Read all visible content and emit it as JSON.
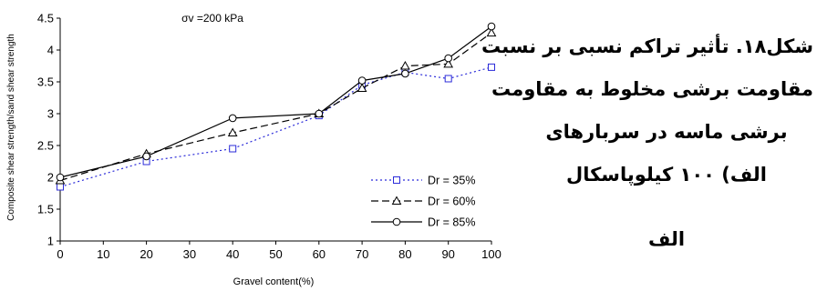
{
  "chart_data": {
    "type": "line",
    "annotation": "σv =200 kPa",
    "xlabel": "Gravel content(%)",
    "ylabel": "Composite shear strength/sand shear strength",
    "xlim": [
      0,
      100
    ],
    "ylim": [
      1,
      4.5
    ],
    "x_ticks": [
      "0",
      "10",
      "20",
      "30",
      "40",
      "50",
      "60",
      "70",
      "80",
      "90",
      "100"
    ],
    "y_ticks": [
      "1",
      "1.5",
      "2",
      "2.5",
      "3",
      "3.5",
      "4",
      "4.5"
    ],
    "grid": false,
    "legend_position": "bottom-right",
    "x": [
      0,
      20,
      40,
      60,
      70,
      80,
      90,
      100
    ],
    "series": [
      {
        "name": "Dr = 35%",
        "marker": "square",
        "line": "dotted",
        "color": "#2b2bd9",
        "values": [
          1.85,
          2.25,
          2.45,
          2.97,
          3.45,
          3.65,
          3.55,
          3.73
        ]
      },
      {
        "name": "Dr = 60%",
        "marker": "triangle",
        "line": "dashed",
        "color": "#000000",
        "values": [
          1.95,
          2.37,
          2.7,
          3.0,
          3.4,
          3.75,
          3.78,
          4.27
        ]
      },
      {
        "name": "Dr = 85%",
        "marker": "circle",
        "line": "solid",
        "color": "#000000",
        "values": [
          2.0,
          2.33,
          2.93,
          3.0,
          3.52,
          3.63,
          3.87,
          4.37
        ]
      }
    ]
  },
  "caption": {
    "lines": [
      "شکل۱۸. تأثیر تراکم نسبی بر نسبت",
      "مقاومت برشی مخلوط به مقاومت",
      "برشی ماسه در سربارهای",
      "الف) ۱۰۰ کیلوپاسکال",
      "الف"
    ]
  }
}
